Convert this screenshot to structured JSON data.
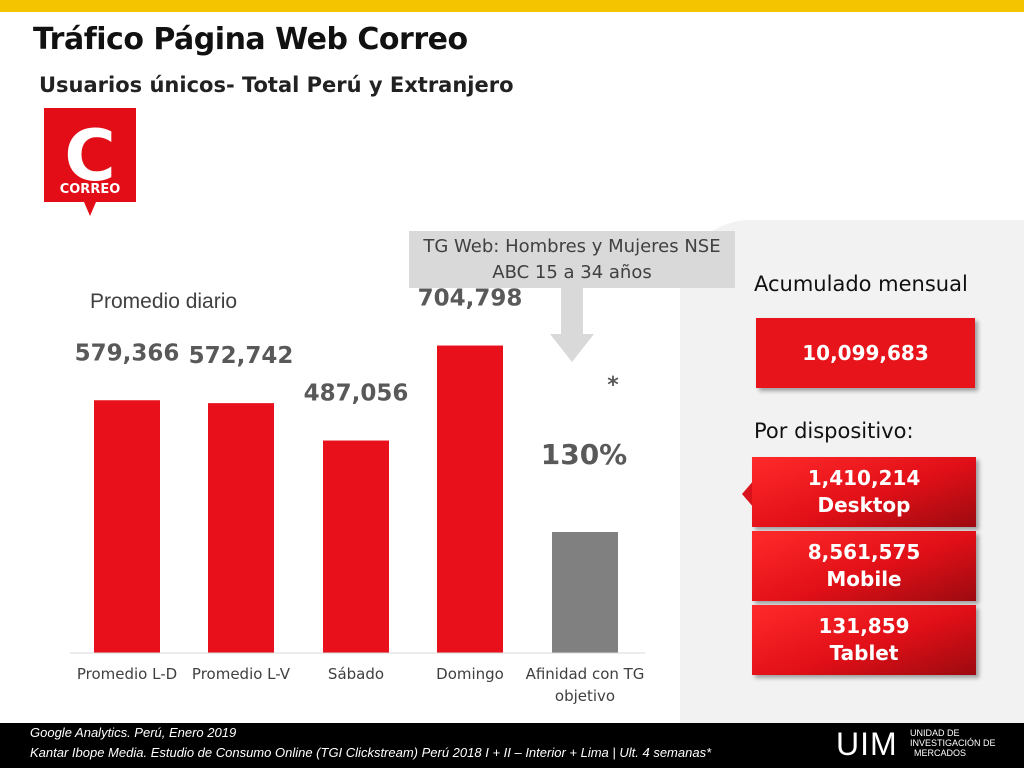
{
  "header": {
    "title": "Tráfico Página Web Correo",
    "subtitle": "Usuarios únicos- Total Perú y Extranjero"
  },
  "logo": {
    "text": "CORREO",
    "letter": "C"
  },
  "chart_data": {
    "type": "bar",
    "title": "Promedio diario",
    "categories": [
      "Promedio L-D",
      "Promedio L-V",
      "Sábado",
      "Domingo",
      "Afinidad con TG objetivo"
    ],
    "values": [
      579366,
      572742,
      487056,
      704798,
      null
    ],
    "value_labels": [
      "579,366",
      "572,742",
      "487,056",
      "704,798",
      "130%"
    ],
    "affinity": {
      "value": 130,
      "label": "130%",
      "note": "*"
    },
    "colors": [
      "#e8101a",
      "#e8101a",
      "#e8101a",
      "#e8101a",
      "#808080"
    ],
    "ylim": [
      0,
      800000
    ],
    "grid": false
  },
  "tg_callout": {
    "line1": "TG Web: Hombres y Mujeres NSE",
    "line2": "ABC 15 a 34 años"
  },
  "summary": {
    "acumulado_label": "Acumulado mensual",
    "acumulado_value": "10,099,683",
    "dispositivo_label": "Por dispositivo:",
    "devices": [
      {
        "value": "1,410,214",
        "name": "Desktop"
      },
      {
        "value": "8,561,575",
        "name": "Mobile"
      },
      {
        "value": "131,859",
        "name": "Tablet"
      }
    ]
  },
  "footer": {
    "line1": "Google Analytics. Perú,  Enero 2019",
    "line2": "Kantar Ibope Media. Estudio de Consumo Online (TGI Clickstream) Perú 2018 I + II – Interior + Lima | Ult. 4 semanas*",
    "brand": "UIM",
    "brand_sub": [
      "UNIDAD DE",
      "INVESTIGACIÓN DE",
      "MERCADOS"
    ]
  },
  "colors": {
    "accent": "#e8141c",
    "topbar": "#f5c400",
    "gray_bar": "#808080"
  }
}
